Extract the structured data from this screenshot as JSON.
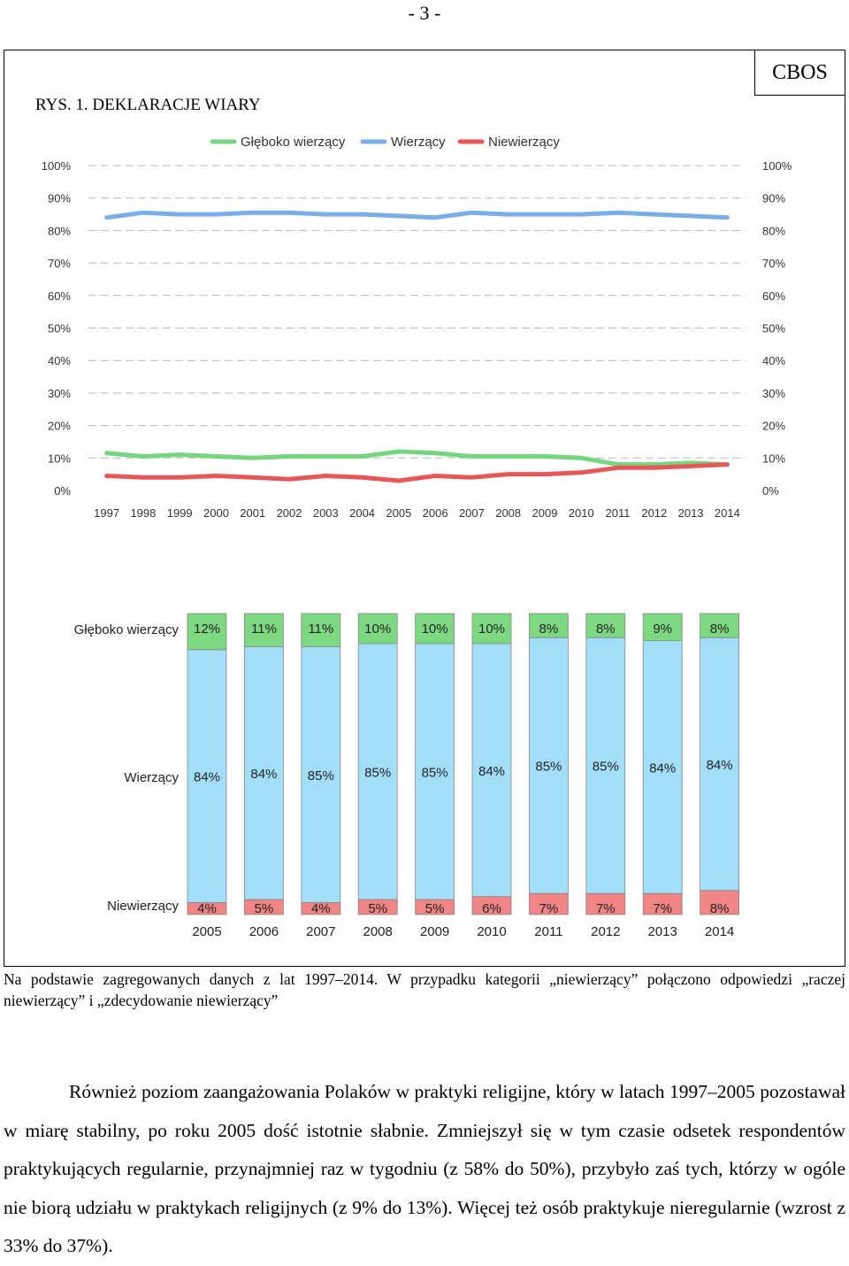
{
  "page_number": "- 3 -",
  "cbos_label": "CBOS",
  "figure_title": "RYS. 1. DEKLARACJE WIARY",
  "legend": [
    {
      "label": "Głęboko wierzący",
      "color": "#74d67e"
    },
    {
      "label": "Wierzący",
      "color": "#7aaeea"
    },
    {
      "label": "Niewierzący",
      "color": "#e85757"
    }
  ],
  "chart_data": [
    {
      "type": "line",
      "x": [
        "1997",
        "1998",
        "1999",
        "2000",
        "2001",
        "2002",
        "2003",
        "2004",
        "2005",
        "2006",
        "2007",
        "2008",
        "2009",
        "2010",
        "2011",
        "2012",
        "2013",
        "2014"
      ],
      "y_ticks": [
        "0%",
        "10%",
        "20%",
        "30%",
        "40%",
        "50%",
        "60%",
        "70%",
        "80%",
        "90%",
        "100%"
      ],
      "ylim": [
        0,
        100
      ],
      "grid": true,
      "legend_position": "top",
      "series": [
        {
          "name": "Głęboko wierzący",
          "color": "#74d67e",
          "values": [
            11.5,
            10.5,
            11,
            10.5,
            10,
            10.5,
            10.5,
            10.5,
            12,
            11.5,
            10.5,
            10.5,
            10.5,
            10,
            8,
            8,
            8.5,
            8
          ]
        },
        {
          "name": "Wierzący",
          "color": "#7aaeea",
          "values": [
            84,
            85.5,
            85,
            85,
            85.5,
            85.5,
            85,
            85,
            84.5,
            84,
            85.5,
            85,
            85,
            85,
            85.5,
            85,
            84.5,
            84
          ]
        },
        {
          "name": "Niewierzący",
          "color": "#e85757",
          "values": [
            4.5,
            4,
            4,
            4.5,
            4,
            3.5,
            4.5,
            4,
            3,
            4.5,
            4,
            5,
            5,
            5.5,
            7,
            7,
            7.5,
            8
          ]
        }
      ]
    },
    {
      "type": "bar",
      "stacked": true,
      "categories": [
        "2005",
        "2006",
        "2007",
        "2008",
        "2009",
        "2010",
        "2011",
        "2012",
        "2013",
        "2014"
      ],
      "series": [
        {
          "name": "Niewierzący",
          "color": "#f18484",
          "values": [
            4,
            5,
            4,
            5,
            5,
            6,
            7,
            7,
            7,
            8
          ],
          "labels": [
            "4%",
            "5%",
            "4%",
            "5%",
            "5%",
            "6%",
            "7%",
            "7%",
            "7%",
            "8%"
          ]
        },
        {
          "name": "Wierzący",
          "color": "#a3def9",
          "values": [
            84,
            84,
            85,
            85,
            85,
            84,
            85,
            85,
            84,
            84
          ],
          "labels": [
            "84%",
            "84%",
            "85%",
            "85%",
            "85%",
            "84%",
            "85%",
            "85%",
            "84%",
            "84%"
          ]
        },
        {
          "name": "Głęboko wierzący",
          "color": "#7dd882",
          "values": [
            12,
            11,
            11,
            10,
            10,
            10,
            8,
            8,
            9,
            8
          ],
          "labels": [
            "12%",
            "11%",
            "11%",
            "10%",
            "10%",
            "10%",
            "8%",
            "8%",
            "9%",
            "8%"
          ]
        }
      ],
      "row_labels": [
        "Głęboko wierzący",
        "Wierzący",
        "Niewierzący"
      ]
    }
  ],
  "caption": "Na podstawie zagregowanych danych z lat 1997–2014. W przypadku kategorii „niewierzący” połączono odpowiedzi „raczej niewierzący” i „zdecydowanie niewierzący”",
  "body_text": "Również poziom zaangażowania Polaków w praktyki religijne, który w latach 1997–2005 pozostawał w miarę stabilny, po roku 2005 dość istotnie słabnie. Zmniejszył się w tym czasie odsetek respondentów praktykujących regularnie, przynajmniej raz w tygodniu (z 58% do 50%), przybyło zaś tych, którzy w ogóle nie biorą udziału w praktykach religijnych (z 9% do 13%). Więcej też osób praktykuje nieregularnie (wzrost z 33% do 37%)."
}
